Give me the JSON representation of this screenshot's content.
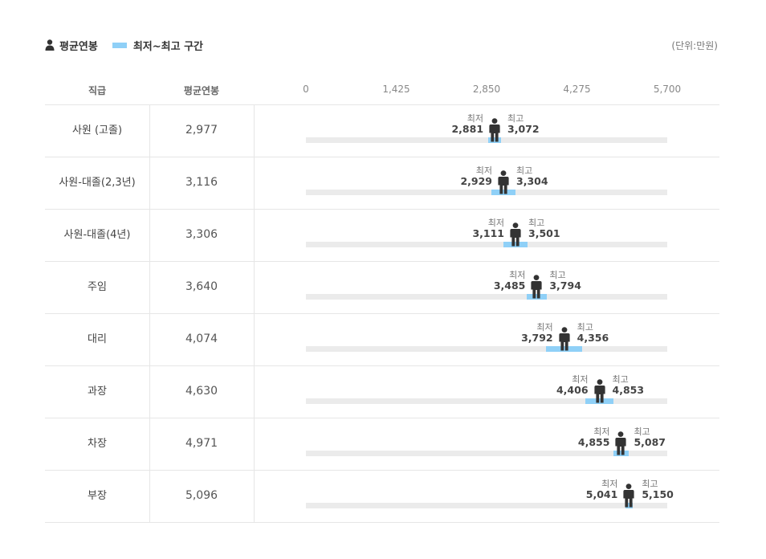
{
  "legend": {
    "avg_label": "평균연봉",
    "range_label": "최저~최고 구간",
    "unit": "(단위:만원)"
  },
  "header": {
    "rank": "직급",
    "avg": "평균연봉"
  },
  "colors": {
    "range": "#8fd0f7",
    "track": "#ebebeb",
    "person": "#333333"
  },
  "labels": {
    "min": "최저",
    "max": "최고"
  },
  "chart_data": {
    "type": "bar",
    "xlim": [
      0,
      5700
    ],
    "ticks": [
      "0",
      "1,425",
      "2,850",
      "4,275",
      "5,700"
    ],
    "tick_values": [
      0,
      1425,
      2850,
      4275,
      5700
    ],
    "rows": [
      {
        "rank": "사원 (고졸)",
        "avg": 2977,
        "avg_text": "2,977",
        "min": 2881,
        "min_text": "2,881",
        "max": 3072,
        "max_text": "3,072"
      },
      {
        "rank": "사원-대졸(2,3년)",
        "avg": 3116,
        "avg_text": "3,116",
        "min": 2929,
        "min_text": "2,929",
        "max": 3304,
        "max_text": "3,304"
      },
      {
        "rank": "사원-대졸(4년)",
        "avg": 3306,
        "avg_text": "3,306",
        "min": 3111,
        "min_text": "3,111",
        "max": 3501,
        "max_text": "3,501"
      },
      {
        "rank": "주임",
        "avg": 3640,
        "avg_text": "3,640",
        "min": 3485,
        "min_text": "3,485",
        "max": 3794,
        "max_text": "3,794"
      },
      {
        "rank": "대리",
        "avg": 4074,
        "avg_text": "4,074",
        "min": 3792,
        "min_text": "3,792",
        "max": 4356,
        "max_text": "4,356"
      },
      {
        "rank": "과장",
        "avg": 4630,
        "avg_text": "4,630",
        "min": 4406,
        "min_text": "4,406",
        "max": 4853,
        "max_text": "4,853"
      },
      {
        "rank": "차장",
        "avg": 4971,
        "avg_text": "4,971",
        "min": 4855,
        "min_text": "4,855",
        "max": 5087,
        "max_text": "5,087"
      },
      {
        "rank": "부장",
        "avg": 5096,
        "avg_text": "5,096",
        "min": 5041,
        "min_text": "5,041",
        "max": 5150,
        "max_text": "5,150"
      }
    ]
  }
}
